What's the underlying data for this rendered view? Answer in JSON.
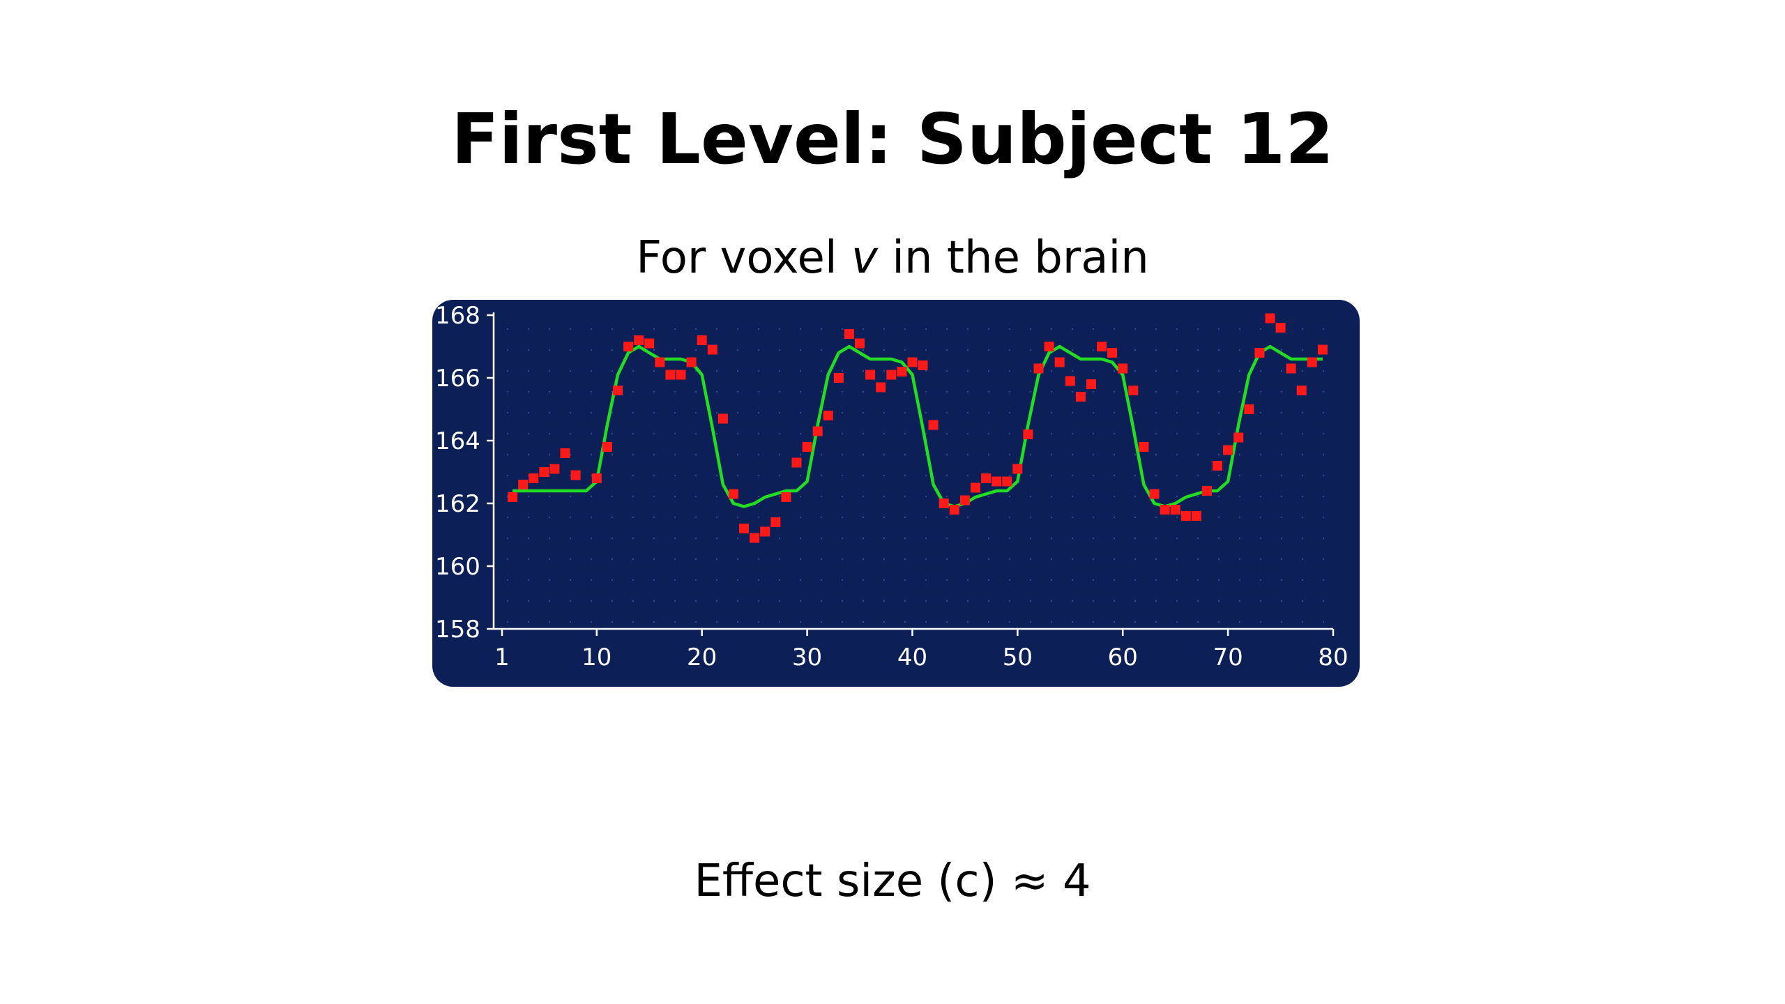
{
  "slide": {
    "title": "First Level: Subject 12",
    "subtitle_pre": "For voxel ",
    "subtitle_var": "v",
    "subtitle_post": " in the brain",
    "effect_text": "Effect size (c) ≈ 4"
  },
  "chart_data": {
    "type": "line",
    "title": "",
    "xlabel": "",
    "ylabel": "",
    "xlim": [
      1,
      80
    ],
    "ylim": [
      158,
      168
    ],
    "x_ticks": [
      1,
      10,
      20,
      30,
      40,
      50,
      60,
      70,
      80
    ],
    "y_ticks": [
      158,
      160,
      162,
      164,
      166,
      168
    ],
    "grid": "dotted",
    "background_color": "#0d1f57",
    "axis_color": "#ffffff",
    "series": [
      {
        "kind": "scatter",
        "color": "#ff1a1a",
        "x": [
          2,
          3,
          4,
          5,
          6,
          7,
          8,
          10,
          11,
          12,
          13,
          14,
          15,
          16,
          17,
          18,
          19,
          20,
          21,
          22,
          23,
          24,
          25,
          26,
          27,
          28,
          29,
          30,
          31,
          32,
          33,
          34,
          35,
          36,
          37,
          38,
          39,
          40,
          41,
          42,
          43,
          44,
          45,
          46,
          47,
          48,
          49,
          50,
          51,
          52,
          53,
          54,
          55,
          56,
          57,
          58,
          59,
          60,
          61,
          62,
          63,
          64,
          65,
          66,
          67,
          68,
          69,
          70,
          71,
          72,
          73,
          74,
          75,
          76,
          77,
          78,
          79
        ],
        "y": [
          162.2,
          162.6,
          162.8,
          163.0,
          163.1,
          163.6,
          162.9,
          162.8,
          163.8,
          165.6,
          167.0,
          167.2,
          167.1,
          166.5,
          166.1,
          166.1,
          166.5,
          167.2,
          166.9,
          164.7,
          162.3,
          161.2,
          160.9,
          161.1,
          161.4,
          162.2,
          163.3,
          163.8,
          164.3,
          164.8,
          166.0,
          167.4,
          167.1,
          166.1,
          165.7,
          166.1,
          166.2,
          166.5,
          166.4,
          164.5,
          162.0,
          161.8,
          162.1,
          162.5,
          162.8,
          162.7,
          162.7,
          163.1,
          164.2,
          166.3,
          167.0,
          166.5,
          165.9,
          165.4,
          165.8,
          167.0,
          166.8,
          166.3,
          165.6,
          163.8,
          162.3,
          161.8,
          161.8,
          161.6,
          161.6,
          162.4,
          163.2,
          163.7,
          164.1,
          165.0,
          166.8,
          167.9,
          167.6,
          166.3,
          165.6,
          166.5,
          166.9
        ]
      },
      {
        "kind": "line",
        "color": "#22dd22",
        "x": [
          2,
          3,
          4,
          5,
          6,
          7,
          8,
          9,
          10,
          11,
          12,
          13,
          14,
          15,
          16,
          17,
          18,
          19,
          20,
          21,
          22,
          23,
          24,
          25,
          26,
          27,
          28,
          29,
          30,
          31,
          32,
          33,
          34,
          35,
          36,
          37,
          38,
          39,
          40,
          41,
          42,
          43,
          44,
          45,
          46,
          47,
          48,
          49,
          50,
          51,
          52,
          53,
          54,
          55,
          56,
          57,
          58,
          59,
          60,
          61,
          62,
          63,
          64,
          65,
          66,
          67,
          68,
          69,
          70,
          71,
          72,
          73,
          74,
          75,
          76,
          77,
          78,
          79
        ],
        "y": [
          162.4,
          162.4,
          162.4,
          162.4,
          162.4,
          162.4,
          162.4,
          162.4,
          162.7,
          164.5,
          166.1,
          166.8,
          167.0,
          166.8,
          166.6,
          166.6,
          166.6,
          166.5,
          166.1,
          164.4,
          162.6,
          162.0,
          161.9,
          162.0,
          162.2,
          162.3,
          162.4,
          162.4,
          162.7,
          164.5,
          166.1,
          166.8,
          167.0,
          166.8,
          166.6,
          166.6,
          166.6,
          166.5,
          166.1,
          164.4,
          162.6,
          162.0,
          161.9,
          162.0,
          162.2,
          162.3,
          162.4,
          162.4,
          162.7,
          164.5,
          166.1,
          166.8,
          167.0,
          166.8,
          166.6,
          166.6,
          166.6,
          166.5,
          166.1,
          164.4,
          162.6,
          162.0,
          161.9,
          162.0,
          162.2,
          162.3,
          162.4,
          162.4,
          162.7,
          164.5,
          166.1,
          166.8,
          167.0,
          166.8,
          166.6,
          166.6,
          166.6,
          166.6
        ]
      }
    ]
  }
}
